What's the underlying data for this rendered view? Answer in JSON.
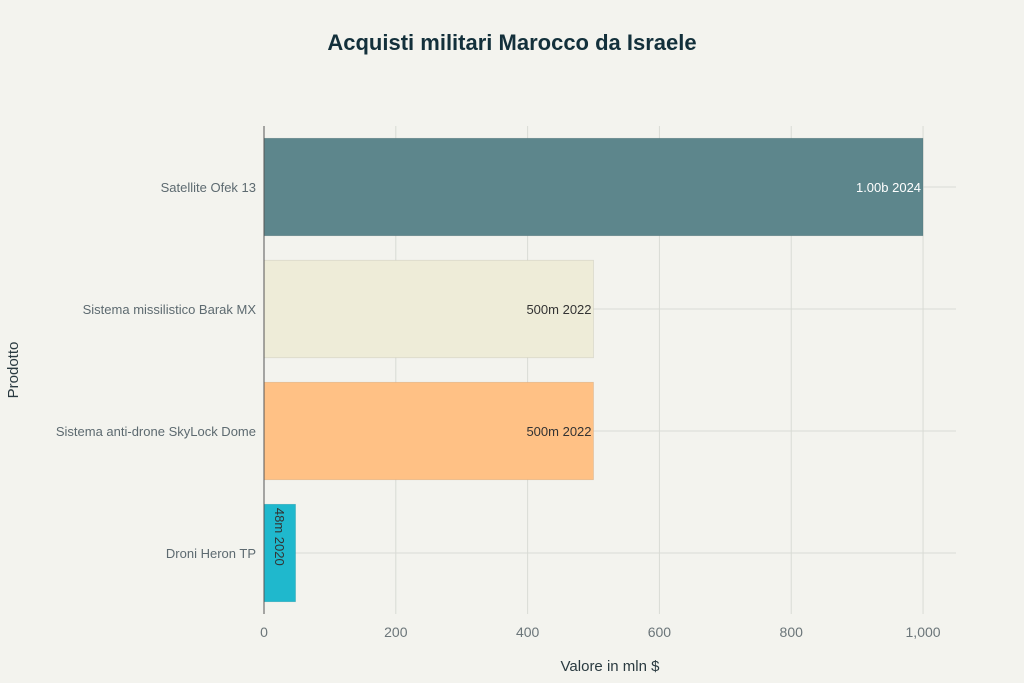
{
  "chart_data": {
    "type": "bar",
    "orientation": "horizontal",
    "title": "Acquisti militari Marocco da Israele",
    "xlabel": "Valore in mln $",
    "ylabel": "Prodotto",
    "xlim": [
      0,
      1050
    ],
    "xticks": [
      0,
      200,
      400,
      600,
      800,
      1000
    ],
    "xtick_labels": [
      "0",
      "200",
      "400",
      "600",
      "800",
      "1,000"
    ],
    "grid": true,
    "categories": [
      "Satellite Ofek 13",
      "Sistema missilistico Barak MX",
      "Sistema anti-drone SkyLock Dome",
      "Droni Heron TP"
    ],
    "values": [
      1000,
      500,
      500,
      48
    ],
    "data_labels": [
      "1.00b 2024",
      "500m 2022",
      "500m 2022",
      "48m 2020"
    ],
    "colors": [
      "#5d868c",
      "#eeecd8",
      "#ffc185",
      "#1fb8cd"
    ],
    "label_colors": [
      "#ffffff",
      "#333333",
      "#333333",
      "#333333"
    ]
  }
}
